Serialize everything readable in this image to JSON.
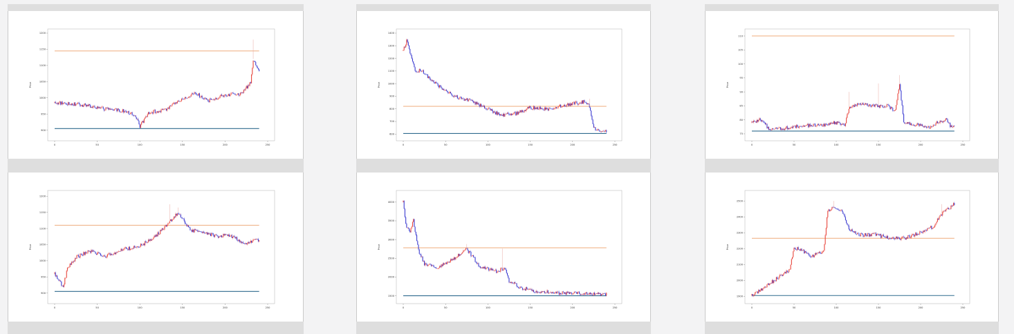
{
  "colors": {
    "up_candle": "#e8453c",
    "down_candle": "#3b3bd0",
    "upper_line": "#f0b48a",
    "lower_line": "#2e6a8e",
    "card_bg": "#ffffff",
    "band": "#dedede",
    "page_bg": "#f3f3f4"
  },
  "chart_data": [
    {
      "type": "candlestick",
      "ylabel": "Price",
      "x_ticks": [
        "0",
        "50",
        "100",
        "150",
        "200",
        "250"
      ],
      "y_ticks": [
        "900",
        "950",
        "1000",
        "1050",
        "1100",
        "1150",
        "1200"
      ],
      "xlim": [
        0,
        250
      ],
      "ylim": [
        880,
        1200
      ],
      "hlines": [
        {
          "role": "upper",
          "value": 1145
        },
        {
          "role": "lower",
          "value": 905
        }
      ],
      "path": [
        [
          0,
          985
        ],
        [
          20,
          982
        ],
        [
          40,
          975
        ],
        [
          60,
          965
        ],
        [
          80,
          960
        ],
        [
          95,
          945
        ],
        [
          100,
          910
        ],
        [
          110,
          955
        ],
        [
          130,
          962
        ],
        [
          145,
          990
        ],
        [
          165,
          1015
        ],
        [
          180,
          990
        ],
        [
          200,
          1010
        ],
        [
          220,
          1012
        ],
        [
          230,
          1050
        ],
        [
          233,
          1120
        ],
        [
          240,
          1080
        ],
        [
          240,
          1080
        ]
      ],
      "spikes": [
        [
          233,
          1180
        ]
      ]
    },
    {
      "type": "candlestick",
      "ylabel": "Price",
      "x_ticks": [
        "0",
        "50",
        "100",
        "150",
        "200",
        "250"
      ],
      "y_ticks": [
        "600",
        "700",
        "800",
        "900",
        "1000",
        "1100",
        "1200",
        "1300",
        "1400"
      ],
      "xlim": [
        0,
        250
      ],
      "ylim": [
        580,
        1400
      ],
      "hlines": [
        {
          "role": "upper",
          "value": 820
        },
        {
          "role": "lower",
          "value": 605
        }
      ],
      "path": [
        [
          0,
          1260
        ],
        [
          4,
          1340
        ],
        [
          10,
          1200
        ],
        [
          15,
          1080
        ],
        [
          20,
          1110
        ],
        [
          40,
          990
        ],
        [
          60,
          900
        ],
        [
          80,
          860
        ],
        [
          100,
          800
        ],
        [
          115,
          750
        ],
        [
          135,
          765
        ],
        [
          150,
          810
        ],
        [
          170,
          800
        ],
        [
          200,
          840
        ],
        [
          215,
          860
        ],
        [
          220,
          820
        ],
        [
          225,
          660
        ],
        [
          230,
          625
        ],
        [
          240,
          630
        ]
      ],
      "spikes": [
        [
          220,
          880
        ]
      ]
    },
    {
      "type": "candlestick",
      "ylabel": "Price",
      "x_ticks": [
        "0",
        "50",
        "100",
        "150",
        "200",
        "250"
      ],
      "y_ticks": [
        "75",
        "80",
        "85",
        "90",
        "95",
        "100",
        "105",
        "110"
      ],
      "xlim": [
        0,
        250
      ],
      "ylim": [
        74,
        111
      ],
      "hlines": [
        {
          "role": "upper",
          "value": 110
        },
        {
          "role": "lower",
          "value": 76
        }
      ],
      "path": [
        [
          0,
          79
        ],
        [
          10,
          80
        ],
        [
          20,
          77
        ],
        [
          40,
          77
        ],
        [
          60,
          78
        ],
        [
          80,
          78
        ],
        [
          100,
          79
        ],
        [
          110,
          78
        ],
        [
          115,
          84
        ],
        [
          130,
          86
        ],
        [
          140,
          85
        ],
        [
          160,
          85
        ],
        [
          170,
          83
        ],
        [
          175,
          93
        ],
        [
          180,
          79
        ],
        [
          200,
          78
        ],
        [
          210,
          77
        ],
        [
          220,
          79
        ],
        [
          230,
          80
        ],
        [
          235,
          78
        ]
      ],
      "spikes": [
        [
          175,
          96
        ],
        [
          150,
          93
        ],
        [
          115,
          90
        ]
      ]
    },
    {
      "type": "candlestick",
      "ylabel": "Price",
      "x_ticks": [
        "0",
        "50",
        "100",
        "150",
        "200",
        "250"
      ],
      "y_ticks": [
        "900",
        "950",
        "1000",
        "1050",
        "1100",
        "1150",
        "1200"
      ],
      "xlim": [
        0,
        250
      ],
      "ylim": [
        880,
        1205
      ],
      "hlines": [
        {
          "role": "upper",
          "value": 1110
        },
        {
          "role": "lower",
          "value": 905
        }
      ],
      "path": [
        [
          0,
          960
        ],
        [
          5,
          940
        ],
        [
          10,
          920
        ],
        [
          15,
          975
        ],
        [
          25,
          1010
        ],
        [
          40,
          1030
        ],
        [
          60,
          1015
        ],
        [
          80,
          1035
        ],
        [
          100,
          1045
        ],
        [
          120,
          1080
        ],
        [
          135,
          1120
        ],
        [
          145,
          1150
        ],
        [
          150,
          1130
        ],
        [
          160,
          1095
        ],
        [
          175,
          1090
        ],
        [
          190,
          1075
        ],
        [
          205,
          1080
        ],
        [
          215,
          1065
        ],
        [
          225,
          1050
        ],
        [
          235,
          1065
        ],
        [
          240,
          1062
        ]
      ],
      "spikes": [
        [
          135,
          1175
        ],
        [
          145,
          1165
        ]
      ]
    },
    {
      "type": "candlestick",
      "ylabel": "Price",
      "x_ticks": [
        "0",
        "50",
        "100",
        "150",
        "200",
        "250"
      ],
      "y_ticks": [
        "1500",
        "2000",
        "2500",
        "3000",
        "3500",
        "4000"
      ],
      "xlim": [
        0,
        250
      ],
      "ylim": [
        1400,
        4200
      ],
      "hlines": [
        {
          "role": "upper",
          "value": 2780
        },
        {
          "role": "lower",
          "value": 1500
        }
      ],
      "path": [
        [
          0,
          4000
        ],
        [
          3,
          3400
        ],
        [
          8,
          3200
        ],
        [
          12,
          3500
        ],
        [
          18,
          2700
        ],
        [
          25,
          2350
        ],
        [
          40,
          2250
        ],
        [
          60,
          2500
        ],
        [
          75,
          2750
        ],
        [
          90,
          2300
        ],
        [
          110,
          2150
        ],
        [
          120,
          2250
        ],
        [
          125,
          1900
        ],
        [
          140,
          1700
        ],
        [
          160,
          1620
        ],
        [
          180,
          1580
        ],
        [
          200,
          1560
        ],
        [
          220,
          1560
        ],
        [
          240,
          1540
        ]
      ],
      "spikes": [
        [
          75,
          2880
        ],
        [
          117,
          2760
        ]
      ]
    },
    {
      "type": "candlestick",
      "ylabel": "Price",
      "x_ticks": [
        "0",
        "50",
        "100",
        "150",
        "200",
        "250"
      ],
      "y_ticks": [
        "1900",
        "2000",
        "2100",
        "2200",
        "2300",
        "2400",
        "2500"
      ],
      "xlim": [
        0,
        250
      ],
      "ylim": [
        1880,
        2540
      ],
      "hlines": [
        {
          "role": "upper",
          "value": 2265
        },
        {
          "role": "lower",
          "value": 1905
        }
      ],
      "path": [
        [
          0,
          1905
        ],
        [
          20,
          1975
        ],
        [
          35,
          2035
        ],
        [
          45,
          2070
        ],
        [
          50,
          2205
        ],
        [
          60,
          2190
        ],
        [
          70,
          2150
        ],
        [
          85,
          2185
        ],
        [
          90,
          2440
        ],
        [
          100,
          2460
        ],
        [
          108,
          2430
        ],
        [
          115,
          2320
        ],
        [
          130,
          2285
        ],
        [
          145,
          2290
        ],
        [
          160,
          2270
        ],
        [
          180,
          2265
        ],
        [
          200,
          2300
        ],
        [
          215,
          2340
        ],
        [
          225,
          2420
        ],
        [
          235,
          2460
        ],
        [
          240,
          2480
        ]
      ],
      "spikes": [
        [
          97,
          2500
        ],
        [
          225,
          2480
        ]
      ]
    }
  ]
}
